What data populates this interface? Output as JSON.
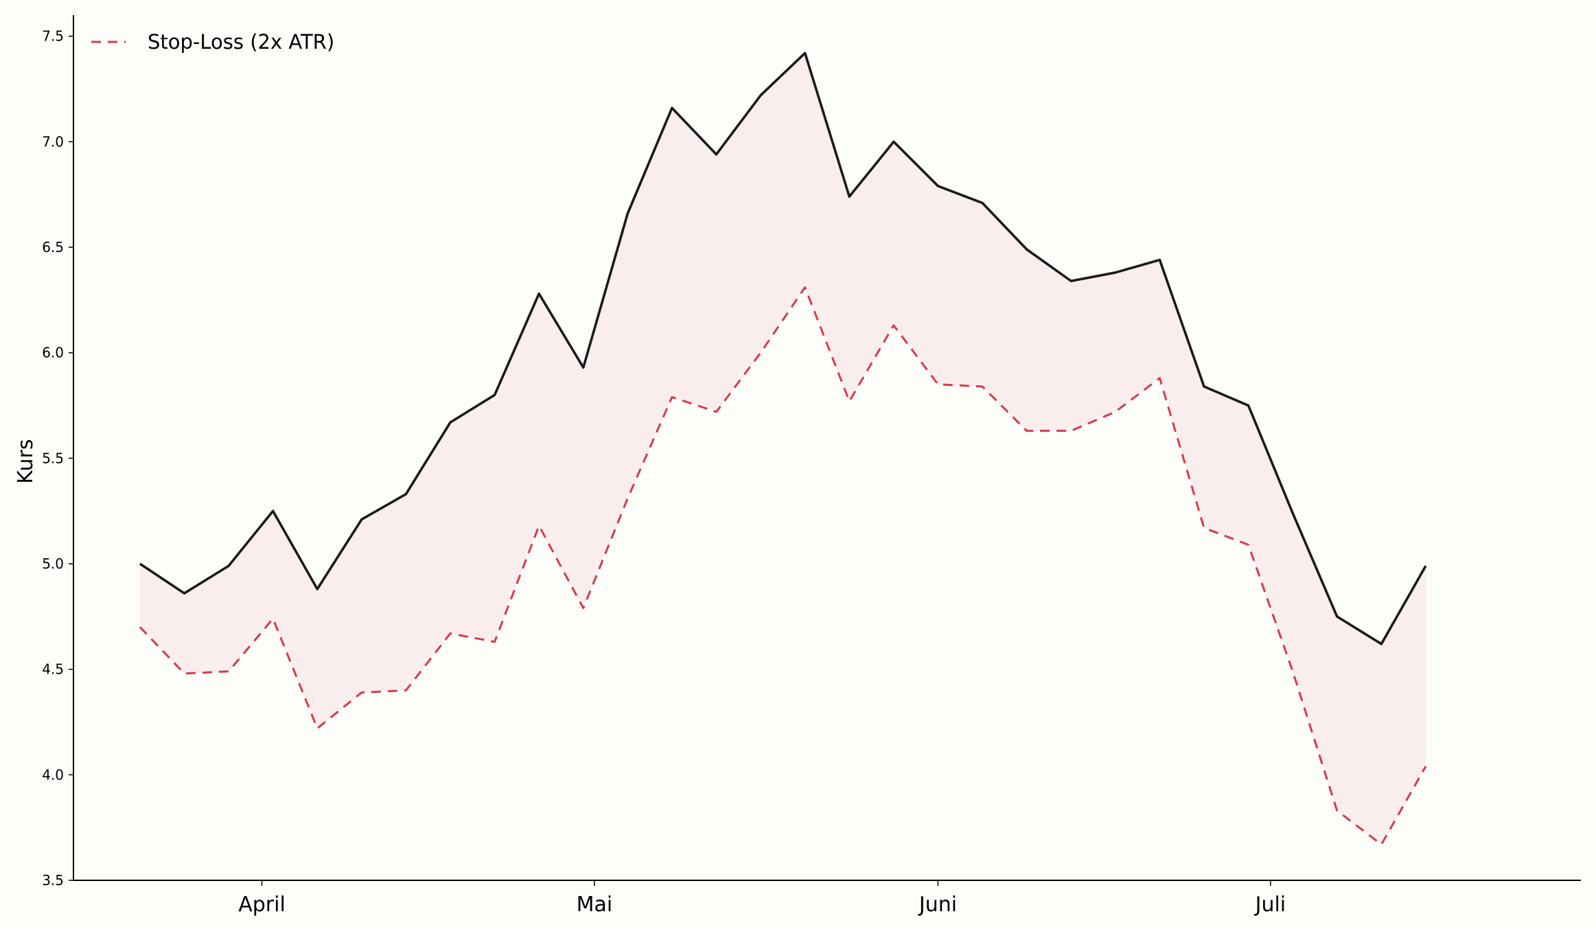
{
  "chart_data": {
    "type": "line",
    "xlabel": "",
    "ylabel": "Kurs",
    "ylim": [
      3.5,
      7.6
    ],
    "xlim": [
      "2024-03-15",
      "2024-07-29"
    ],
    "yticks": [
      "3.5",
      "4.0",
      "4.5",
      "5.0",
      "5.5",
      "6.0",
      "6.5",
      "7.0",
      "7.5"
    ],
    "xticks": [
      {
        "date": "2024-04-01",
        "label": "April"
      },
      {
        "date": "2024-05-01",
        "label": "Mai"
      },
      {
        "date": "2024-06-01",
        "label": "Juni"
      },
      {
        "date": "2024-07-01",
        "label": "Juli"
      }
    ],
    "x": [
      "2024-03-21",
      "2024-03-25",
      "2024-03-29",
      "2024-04-02",
      "2024-04-06",
      "2024-04-10",
      "2024-04-14",
      "2024-04-18",
      "2024-04-22",
      "2024-04-26",
      "2024-04-30",
      "2024-05-04",
      "2024-05-08",
      "2024-05-12",
      "2024-05-16",
      "2024-05-20",
      "2024-05-24",
      "2024-05-28",
      "2024-06-01",
      "2024-06-05",
      "2024-06-09",
      "2024-06-13",
      "2024-06-17",
      "2024-06-21",
      "2024-06-25",
      "2024-06-29",
      "2024-07-03",
      "2024-07-07",
      "2024-07-11",
      "2024-07-15"
    ],
    "series": [
      {
        "name": "",
        "color": "#1a1a1a",
        "style": "solid",
        "values": [
          5.0,
          4.86,
          4.99,
          5.25,
          4.88,
          5.21,
          5.33,
          5.67,
          5.8,
          6.28,
          5.93,
          6.66,
          7.16,
          6.94,
          7.22,
          7.42,
          6.74,
          7.0,
          6.79,
          6.71,
          6.49,
          6.34,
          6.38,
          6.44,
          5.84,
          5.75,
          5.24,
          4.75,
          4.62,
          4.99
        ]
      },
      {
        "name": "Stop-Loss (2x ATR)",
        "color": "#d43b4e",
        "style": "dashed",
        "values": [
          4.7,
          4.48,
          4.49,
          4.74,
          4.22,
          4.39,
          4.4,
          4.67,
          4.63,
          5.18,
          4.79,
          5.31,
          5.79,
          5.72,
          6.0,
          6.31,
          5.77,
          6.13,
          5.85,
          5.84,
          5.63,
          5.63,
          5.72,
          5.88,
          5.17,
          5.09,
          4.49,
          3.83,
          3.67,
          4.04
        ]
      }
    ],
    "fill_between": {
      "color": "#f6d9df",
      "opacity": 0.45
    },
    "legend": {
      "position": "top-left"
    },
    "grid": false
  }
}
